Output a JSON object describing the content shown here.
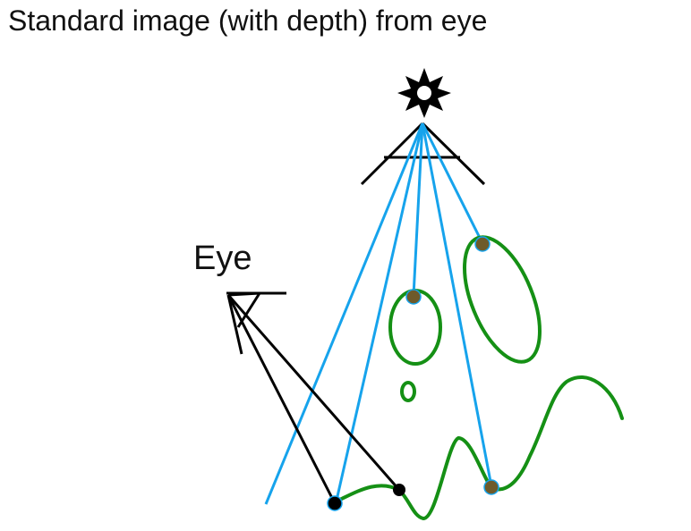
{
  "title": "Standard image (with depth) from eye",
  "eye_label": "Eye",
  "colors": {
    "light_rays": "#16a3ec",
    "eye_rays": "#000000",
    "geometry": "#159015",
    "shadow_points": "#6e5a2a",
    "eye_points": "#000000",
    "text": "#111111"
  },
  "icons": {
    "light_source": "sun-icon",
    "light_camera": "camera-frustum-icon",
    "eye_camera": "eye-frustum-icon"
  }
}
